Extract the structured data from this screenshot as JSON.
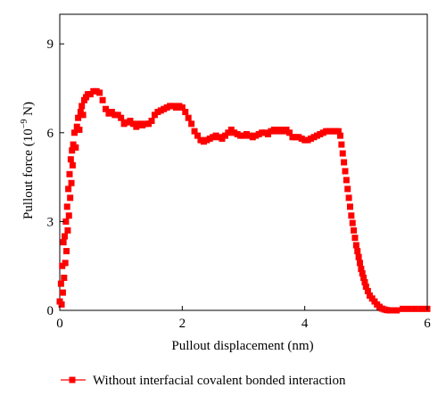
{
  "chart_data": {
    "type": "scatter",
    "xlabel": "Pullout displacement (nm)",
    "ylabel_main": "Pullout force (10",
    "ylabel_exp": "−9",
    "ylabel_unit": " N)",
    "xlim": [
      0,
      6
    ],
    "ylim": [
      0,
      10
    ],
    "xticks": [
      0,
      2,
      4,
      6
    ],
    "yticks": [
      0,
      3,
      6,
      9
    ],
    "grid": false,
    "legend_position": "bottom",
    "series": [
      {
        "name": "Without interfacial covalent bonded interaction",
        "color": "#ff0000",
        "marker": "square",
        "points": [
          [
            0.0,
            0.3
          ],
          [
            0.02,
            0.9
          ],
          [
            0.03,
            0.2
          ],
          [
            0.04,
            1.5
          ],
          [
            0.05,
            0.6
          ],
          [
            0.06,
            2.3
          ],
          [
            0.07,
            1.1
          ],
          [
            0.08,
            2.5
          ],
          [
            0.09,
            1.6
          ],
          [
            0.1,
            3.0
          ],
          [
            0.11,
            2.0
          ],
          [
            0.12,
            3.5
          ],
          [
            0.13,
            2.7
          ],
          [
            0.14,
            4.1
          ],
          [
            0.15,
            3.2
          ],
          [
            0.16,
            4.6
          ],
          [
            0.17,
            3.8
          ],
          [
            0.18,
            5.1
          ],
          [
            0.19,
            4.3
          ],
          [
            0.2,
            5.4
          ],
          [
            0.21,
            4.9
          ],
          [
            0.22,
            5.6
          ],
          [
            0.24,
            6.0
          ],
          [
            0.26,
            5.5
          ],
          [
            0.28,
            6.2
          ],
          [
            0.3,
            6.5
          ],
          [
            0.32,
            6.1
          ],
          [
            0.34,
            6.7
          ],
          [
            0.36,
            6.9
          ],
          [
            0.38,
            6.6
          ],
          [
            0.4,
            7.1
          ],
          [
            0.43,
            7.2
          ],
          [
            0.46,
            7.3
          ],
          [
            0.5,
            7.3
          ],
          [
            0.55,
            7.4
          ],
          [
            0.6,
            7.4
          ],
          [
            0.65,
            7.35
          ],
          [
            0.7,
            7.1
          ],
          [
            0.75,
            6.8
          ],
          [
            0.8,
            6.65
          ],
          [
            0.85,
            6.7
          ],
          [
            0.9,
            6.6
          ],
          [
            0.95,
            6.6
          ],
          [
            1.0,
            6.5
          ],
          [
            1.05,
            6.3
          ],
          [
            1.1,
            6.35
          ],
          [
            1.15,
            6.4
          ],
          [
            1.2,
            6.3
          ],
          [
            1.25,
            6.2
          ],
          [
            1.3,
            6.3
          ],
          [
            1.35,
            6.25
          ],
          [
            1.4,
            6.3
          ],
          [
            1.45,
            6.3
          ],
          [
            1.5,
            6.4
          ],
          [
            1.55,
            6.6
          ],
          [
            1.6,
            6.7
          ],
          [
            1.65,
            6.75
          ],
          [
            1.7,
            6.8
          ],
          [
            1.75,
            6.85
          ],
          [
            1.8,
            6.9
          ],
          [
            1.85,
            6.9
          ],
          [
            1.9,
            6.85
          ],
          [
            1.95,
            6.9
          ],
          [
            2.0,
            6.85
          ],
          [
            2.05,
            6.7
          ],
          [
            2.1,
            6.5
          ],
          [
            2.15,
            6.3
          ],
          [
            2.2,
            6.05
          ],
          [
            2.25,
            5.9
          ],
          [
            2.3,
            5.75
          ],
          [
            2.35,
            5.7
          ],
          [
            2.4,
            5.75
          ],
          [
            2.45,
            5.8
          ],
          [
            2.5,
            5.85
          ],
          [
            2.55,
            5.9
          ],
          [
            2.6,
            5.85
          ],
          [
            2.65,
            5.8
          ],
          [
            2.7,
            5.9
          ],
          [
            2.75,
            6.0
          ],
          [
            2.8,
            6.1
          ],
          [
            2.85,
            6.0
          ],
          [
            2.9,
            5.95
          ],
          [
            2.95,
            5.9
          ],
          [
            3.0,
            5.9
          ],
          [
            3.05,
            5.95
          ],
          [
            3.1,
            5.9
          ],
          [
            3.15,
            5.85
          ],
          [
            3.2,
            5.9
          ],
          [
            3.25,
            5.95
          ],
          [
            3.3,
            6.0
          ],
          [
            3.35,
            6.0
          ],
          [
            3.4,
            5.95
          ],
          [
            3.45,
            6.05
          ],
          [
            3.5,
            6.1
          ],
          [
            3.55,
            6.05
          ],
          [
            3.6,
            6.1
          ],
          [
            3.65,
            6.05
          ],
          [
            3.7,
            6.1
          ],
          [
            3.75,
            6.0
          ],
          [
            3.8,
            5.85
          ],
          [
            3.85,
            5.85
          ],
          [
            3.9,
            5.85
          ],
          [
            3.95,
            5.8
          ],
          [
            4.0,
            5.75
          ],
          [
            4.05,
            5.75
          ],
          [
            4.1,
            5.8
          ],
          [
            4.15,
            5.85
          ],
          [
            4.2,
            5.9
          ],
          [
            4.25,
            5.95
          ],
          [
            4.3,
            6.0
          ],
          [
            4.35,
            6.05
          ],
          [
            4.4,
            6.05
          ],
          [
            4.45,
            6.05
          ],
          [
            4.5,
            6.05
          ],
          [
            4.55,
            6.05
          ],
          [
            4.58,
            5.9
          ],
          [
            4.6,
            5.6
          ],
          [
            4.62,
            5.3
          ],
          [
            4.64,
            5.0
          ],
          [
            4.66,
            4.7
          ],
          [
            4.68,
            4.4
          ],
          [
            4.7,
            4.1
          ],
          [
            4.72,
            3.8
          ],
          [
            4.74,
            3.5
          ],
          [
            4.76,
            3.2
          ],
          [
            4.78,
            2.95
          ],
          [
            4.8,
            2.7
          ],
          [
            4.82,
            2.45
          ],
          [
            4.84,
            2.2
          ],
          [
            4.86,
            2.0
          ],
          [
            4.88,
            1.8
          ],
          [
            4.9,
            1.6
          ],
          [
            4.92,
            1.4
          ],
          [
            4.94,
            1.25
          ],
          [
            4.96,
            1.1
          ],
          [
            4.98,
            0.95
          ],
          [
            5.0,
            0.8
          ],
          [
            5.03,
            0.65
          ],
          [
            5.06,
            0.5
          ],
          [
            5.1,
            0.4
          ],
          [
            5.14,
            0.3
          ],
          [
            5.18,
            0.2
          ],
          [
            5.22,
            0.12
          ],
          [
            5.26,
            0.06
          ],
          [
            5.3,
            0.03
          ],
          [
            5.34,
            0.01
          ],
          [
            5.38,
            0.0
          ],
          [
            5.45,
            0.0
          ],
          [
            5.5,
            0.0
          ],
          [
            5.6,
            0.05
          ],
          [
            5.7,
            0.05
          ],
          [
            5.8,
            0.05
          ],
          [
            5.9,
            0.05
          ],
          [
            6.0,
            0.05
          ]
        ]
      }
    ]
  }
}
